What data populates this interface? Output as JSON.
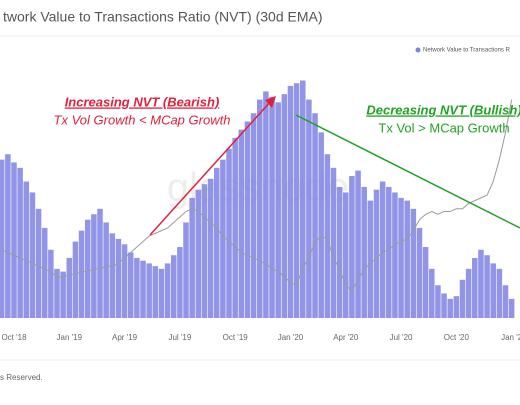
{
  "chart_data": {
    "type": "bar",
    "title": "twork Value to Transactions Ratio (NVT) (30d EMA)",
    "footer": "s Reserved.",
    "watermark": "glassnode",
    "annotations": [
      {
        "text": "Increasing NVT (Bearish)",
        "color": "#e0213c"
      },
      {
        "text": "Tx Vol Growth < MCap Growth",
        "color": "#e0213c"
      },
      {
        "text": "Decreasing NVT (Bullish)",
        "color": "#21a324"
      },
      {
        "text": "Tx Vol > MCap Growth",
        "color": "#21a324"
      }
    ],
    "categories": [
      null,
      null,
      "Oct '18",
      null,
      null,
      null,
      null,
      null,
      null,
      null,
      null,
      "Jan '19",
      null,
      null,
      null,
      null,
      null,
      null,
      null,
      null,
      "Apr '19",
      null,
      null,
      null,
      null,
      null,
      null,
      null,
      null,
      "Jul '19",
      null,
      null,
      null,
      null,
      null,
      null,
      null,
      null,
      "Oct '19",
      null,
      null,
      null,
      null,
      null,
      null,
      null,
      null,
      "Jan '20",
      null,
      null,
      null,
      null,
      null,
      null,
      null,
      null,
      "Apr '20",
      null,
      null,
      null,
      null,
      null,
      null,
      null,
      null,
      "Jul '20",
      null,
      null,
      null,
      null,
      null,
      null,
      null,
      null,
      "Oct '20",
      null,
      null,
      null,
      null,
      null,
      null,
      null,
      null,
      "Jan '2"
    ],
    "series": [
      {
        "name": "Network Value to Transactions R",
        "type": "bar",
        "color": "#7f83e3",
        "values": [
          58,
          60,
          57,
          55,
          50,
          46,
          40,
          33,
          25,
          18,
          17,
          22,
          28,
          32,
          36,
          38,
          40,
          35,
          31,
          29,
          27,
          24,
          22,
          21,
          20,
          19,
          18,
          20,
          23,
          26,
          35,
          44,
          47,
          49,
          51,
          55,
          58,
          62,
          66,
          69,
          72,
          75,
          80,
          83,
          81,
          79,
          82,
          85,
          86,
          87,
          80,
          75,
          68,
          60,
          55,
          48,
          46,
          52,
          54,
          48,
          43,
          47,
          50,
          48,
          46,
          44,
          43,
          40,
          33,
          26,
          18,
          12,
          9,
          7,
          8,
          14,
          18,
          22,
          25,
          23,
          20,
          18,
          12,
          7
        ]
      },
      {
        "type": "line",
        "axis": "y2",
        "color": "#9a9a9a",
        "values": [
          25,
          24,
          23,
          22,
          21,
          20,
          19,
          18,
          17,
          15,
          15,
          16,
          16,
          17,
          17,
          18,
          18,
          19,
          19,
          20,
          22,
          24,
          26,
          28,
          30,
          31,
          32,
          33,
          35,
          37,
          39,
          40,
          39,
          37,
          35,
          33,
          30,
          28,
          26,
          24,
          23,
          22,
          21,
          20,
          18,
          17,
          15,
          13,
          12,
          18,
          22,
          28,
          30,
          29,
          22,
          18,
          12,
          10,
          14,
          18,
          20,
          22,
          24,
          25,
          27,
          28,
          29,
          32,
          36,
          38,
          39,
          38,
          39,
          39,
          40,
          40,
          42,
          43,
          44,
          45,
          50,
          58,
          68,
          80
        ]
      }
    ],
    "ylim": [
      0,
      100
    ],
    "y2lim": [
      0,
      100
    ],
    "legend": "top-right"
  }
}
